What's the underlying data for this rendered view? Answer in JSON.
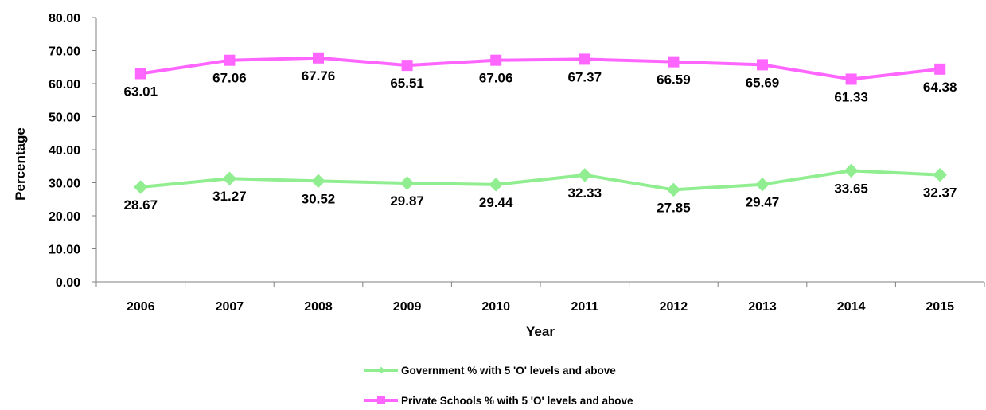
{
  "chart_data": {
    "type": "line",
    "categories": [
      "2006",
      "2007",
      "2008",
      "2009",
      "2010",
      "2011",
      "2012",
      "2013",
      "2014",
      "2015"
    ],
    "series": [
      {
        "name": "Government % with 5 'O' levels and above",
        "values": [
          28.67,
          31.27,
          30.52,
          29.87,
          29.44,
          32.33,
          27.85,
          29.47,
          33.65,
          32.37
        ],
        "value_labels": [
          "28.67",
          "31.27",
          "30.52",
          "29.87",
          "29.44",
          "32.33",
          "27.85",
          "29.47",
          "33.65",
          "32.37"
        ],
        "color": "#90EE90",
        "marker": "diamond"
      },
      {
        "name": "Private Schools % with 5 'O' levels and above",
        "values": [
          63.01,
          67.06,
          67.76,
          65.51,
          67.06,
          67.37,
          66.59,
          65.69,
          61.33,
          64.38
        ],
        "value_labels": [
          "63.01",
          "67.06",
          "67.76",
          "65.51",
          "67.06",
          "67.37",
          "66.59",
          "65.69",
          "61.33",
          "64.38"
        ],
        "color": "#FF66FF",
        "marker": "square"
      }
    ],
    "xlabel": "Year",
    "ylabel": "Percentage",
    "ylim": [
      0,
      80
    ],
    "y_ticks": [
      "0.00",
      "10.00",
      "20.00",
      "30.00",
      "40.00",
      "50.00",
      "60.00",
      "70.00",
      "80.00"
    ],
    "grid": false,
    "legend_position": "bottom"
  }
}
